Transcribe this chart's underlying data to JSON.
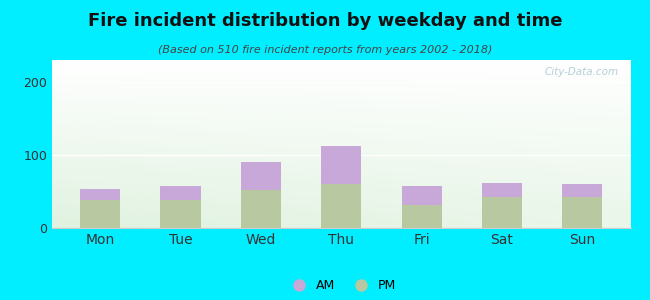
{
  "categories": [
    "Mon",
    "Tue",
    "Wed",
    "Thu",
    "Fri",
    "Sat",
    "Sun"
  ],
  "am_values": [
    15,
    20,
    38,
    52,
    25,
    20,
    18
  ],
  "pm_values": [
    38,
    38,
    52,
    60,
    32,
    42,
    42
  ],
  "am_color": "#c8a8d8",
  "pm_color": "#b8c8a0",
  "title": "Fire incident distribution by weekday and time",
  "subtitle": "(Based on 510 fire incident reports from years 2002 - 2018)",
  "ylim": [
    0,
    230
  ],
  "yticks": [
    0,
    100,
    200
  ],
  "background_color": "#00eeff",
  "legend_labels": [
    "AM",
    "PM"
  ],
  "watermark": "© City-Data.com"
}
